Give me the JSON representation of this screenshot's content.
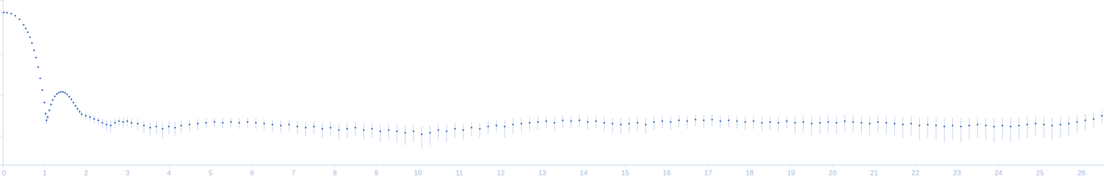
{
  "chart_data": {
    "type": "scatter",
    "log": "y",
    "tick_labels": "x",
    "grid": false,
    "color": "#2f63b8",
    "marker": "circle",
    "xlim": [
      0,
      26.55
    ],
    "ylim": [
      0.0002,
      2
    ],
    "xticks": [
      0,
      1,
      2,
      3,
      4,
      5,
      6,
      7,
      8,
      9,
      10,
      11,
      12,
      13,
      14,
      15,
      16,
      17,
      18,
      19,
      20,
      21,
      22,
      23,
      24,
      25,
      26
    ],
    "yticks": [
      0.001,
      0.01,
      0.1,
      1
    ],
    "x": [
      0.02,
      0.1,
      0.2,
      0.3,
      0.4,
      0.5,
      0.55,
      0.6,
      0.65,
      0.7,
      0.75,
      0.8,
      0.85,
      0.9,
      0.95,
      1.0,
      1.03,
      1.05,
      1.08,
      1.12,
      1.16,
      1.2,
      1.25,
      1.3,
      1.35,
      1.4,
      1.45,
      1.5,
      1.55,
      1.6,
      1.65,
      1.7,
      1.75,
      1.8,
      1.85,
      1.9,
      2.0,
      2.1,
      2.2,
      2.3,
      2.4,
      2.5,
      2.6,
      2.7,
      2.8,
      2.9,
      3.0,
      3.1,
      3.25,
      3.4,
      3.55,
      3.7,
      3.85,
      4.0,
      4.15,
      4.3,
      4.5,
      4.7,
      4.9,
      5.1,
      5.3,
      5.5,
      5.7,
      5.9,
      6.1,
      6.3,
      6.5,
      6.7,
      6.9,
      7.1,
      7.3,
      7.5,
      7.7,
      7.9,
      8.1,
      8.3,
      8.5,
      8.7,
      8.9,
      9.1,
      9.3,
      9.5,
      9.7,
      9.9,
      10.1,
      10.3,
      10.5,
      10.7,
      10.9,
      11.1,
      11.3,
      11.5,
      11.7,
      11.9,
      12.1,
      12.3,
      12.5,
      12.7,
      12.9,
      13.1,
      13.3,
      13.5,
      13.7,
      13.9,
      14.1,
      14.3,
      14.5,
      14.7,
      14.9,
      15.1,
      15.3,
      15.5,
      15.7,
      15.9,
      16.1,
      16.3,
      16.5,
      16.7,
      16.9,
      17.1,
      17.3,
      17.5,
      17.7,
      17.9,
      18.1,
      18.3,
      18.5,
      18.7,
      18.9,
      19.1,
      19.3,
      19.5,
      19.7,
      19.9,
      20.1,
      20.3,
      20.5,
      20.7,
      20.9,
      21.1,
      21.3,
      21.5,
      21.7,
      21.9,
      22.1,
      22.3,
      22.5,
      22.7,
      22.9,
      23.1,
      23.3,
      23.5,
      23.7,
      23.9,
      24.1,
      24.3,
      24.5,
      24.7,
      24.9,
      25.1,
      25.3,
      25.5,
      25.7,
      25.9,
      26.1,
      26.3,
      26.5
    ],
    "values": [
      1.0,
      0.98,
      0.93,
      0.83,
      0.68,
      0.5,
      0.41,
      0.33,
      0.25,
      0.18,
      0.12,
      0.08,
      0.047,
      0.025,
      0.013,
      0.0065,
      0.0035,
      0.0024,
      0.0029,
      0.0042,
      0.0058,
      0.0075,
      0.0092,
      0.0105,
      0.0113,
      0.0118,
      0.0117,
      0.0112,
      0.0102,
      0.009,
      0.0078,
      0.0065,
      0.0054,
      0.0046,
      0.0039,
      0.0034,
      0.0031,
      0.0029,
      0.0026,
      0.0024,
      0.0021,
      0.0019,
      0.0018,
      0.0021,
      0.0023,
      0.0022,
      0.0023,
      0.0021,
      0.002,
      0.0018,
      0.0016,
      0.0017,
      0.0015,
      0.0017,
      0.0016,
      0.0018,
      0.0019,
      0.002,
      0.0021,
      0.0022,
      0.0021,
      0.0022,
      0.0021,
      0.0022,
      0.0021,
      0.002,
      0.0019,
      0.0018,
      0.0019,
      0.0017,
      0.0016,
      0.0017,
      0.0015,
      0.0016,
      0.0014,
      0.0015,
      0.0016,
      0.0014,
      0.0015,
      0.0013,
      0.0014,
      0.0013,
      0.0012,
      0.0013,
      0.0011,
      0.0012,
      0.0014,
      0.0013,
      0.0015,
      0.0014,
      0.0016,
      0.0015,
      0.0017,
      0.0018,
      0.0017,
      0.0019,
      0.002,
      0.0021,
      0.0022,
      0.0023,
      0.0021,
      0.0024,
      0.0023,
      0.0024,
      0.0022,
      0.0023,
      0.0021,
      0.002,
      0.0019,
      0.002,
      0.0021,
      0.0019,
      0.0022,
      0.0023,
      0.0022,
      0.0024,
      0.0023,
      0.0025,
      0.0024,
      0.0025,
      0.0023,
      0.0024,
      0.0023,
      0.0022,
      0.0023,
      0.0021,
      0.0022,
      0.0021,
      0.0023,
      0.0021,
      0.0022,
      0.002,
      0.0021,
      0.0022,
      0.0021,
      0.0023,
      0.0022,
      0.0021,
      0.002,
      0.0022,
      0.0021,
      0.002,
      0.0019,
      0.002,
      0.0018,
      0.0019,
      0.0018,
      0.0017,
      0.0018,
      0.0017,
      0.0018,
      0.0019,
      0.0018,
      0.0017,
      0.0018,
      0.0017,
      0.0018,
      0.0019,
      0.002,
      0.0019,
      0.0018,
      0.0019,
      0.002,
      0.0022,
      0.0024,
      0.0026,
      0.0031
    ],
    "errors": [
      0.006,
      0.006,
      0.006,
      0.005,
      0.005,
      0.004,
      0.004,
      0.003,
      0.003,
      0.002,
      0.002,
      0.0015,
      0.001,
      0.0008,
      0.0005,
      0.0004,
      0.0005,
      0.0005,
      0.0005,
      0.0005,
      0.0005,
      0.0005,
      0.0005,
      0.0005,
      0.0005,
      0.0005,
      0.0005,
      0.0005,
      0.0005,
      0.0005,
      0.0005,
      0.0005,
      0.0005,
      0.0005,
      0.0005,
      0.0005,
      0.0006,
      0.0006,
      0.0006,
      0.0006,
      0.0006,
      0.0006,
      0.0006,
      0.0006,
      0.0006,
      0.0006,
      0.0006,
      0.0006,
      0.0006,
      0.0006,
      0.0006,
      0.0006,
      0.0006,
      0.0006,
      0.0006,
      0.0006,
      0.0006,
      0.0006,
      0.0006,
      0.0006,
      0.0006,
      0.0006,
      0.0006,
      0.0006,
      0.0006,
      0.0006,
      0.0006,
      0.0006,
      0.0006,
      0.0006,
      0.0006,
      0.0006,
      0.0006,
      0.0006,
      0.0006,
      0.0006,
      0.0006,
      0.0006,
      0.0006,
      0.0006,
      0.0006,
      0.0006,
      0.0006,
      0.0006,
      0.0006,
      0.0006,
      0.0006,
      0.0006,
      0.0006,
      0.0006,
      0.0006,
      0.0006,
      0.0006,
      0.0006,
      0.0008,
      0.0008,
      0.0008,
      0.0008,
      0.0008,
      0.0008,
      0.0008,
      0.0008,
      0.0008,
      0.0008,
      0.0008,
      0.0008,
      0.0008,
      0.0008,
      0.0008,
      0.0008,
      0.0008,
      0.0008,
      0.0008,
      0.0008,
      0.0008,
      0.0008,
      0.0008,
      0.0008,
      0.0008,
      0.0008,
      0.0008,
      0.0008,
      0.0008,
      0.0008,
      0.0008,
      0.0008,
      0.0008,
      0.0008,
      0.0008,
      0.001,
      0.001,
      0.001,
      0.001,
      0.001,
      0.001,
      0.001,
      0.001,
      0.001,
      0.001,
      0.001,
      0.001,
      0.001,
      0.001,
      0.001,
      0.001,
      0.001,
      0.001,
      0.001,
      0.001,
      0.001,
      0.001,
      0.001,
      0.001,
      0.001,
      0.001,
      0.001,
      0.001,
      0.001,
      0.001,
      0.001,
      0.001,
      0.001,
      0.001,
      0.001,
      0.001,
      0.001,
      0.001
    ]
  }
}
